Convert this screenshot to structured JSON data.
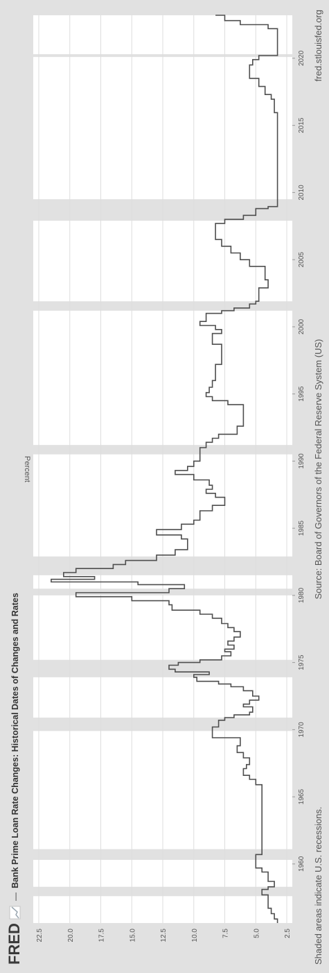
{
  "header": {
    "brand": "FRED",
    "separator": "—",
    "title": "Bank Prime Loan Rate Changes: Historical Dates of Changes and Rates"
  },
  "footer": {
    "recessions_note": "Shaded areas indicate U.S. recessions.",
    "source": "Source: Board of Governors of the Federal Reserve System (US)",
    "website": "fred.stlouisfed.org"
  },
  "colors": {
    "background": "#e1e1e1",
    "plot_background": "#ffffff",
    "recession_shade": "#e1e1e1",
    "gridline": "#dddddd",
    "series_line": "#4d4d4d",
    "text": "#444444"
  },
  "chart_data": {
    "type": "line",
    "orientation": "rotated 90 degrees clockwise (time axis runs top to bottom)",
    "title": "Bank Prime Loan Rate Changes: Historical Dates of Changes and Rates",
    "ylabel": "Percent",
    "xlabel": "",
    "ylim": [
      2.5,
      22.5
    ],
    "xlim": [
      1955.6,
      2023.2
    ],
    "y_ticks": [
      "2.5",
      "5.0",
      "7.5",
      "10.0",
      "12.5",
      "15.0",
      "17.5",
      "20.0",
      "22.5"
    ],
    "x_ticks": [
      "1960",
      "1965",
      "1970",
      "1975",
      "1980",
      "1985",
      "1990",
      "1995",
      "2000",
      "2005",
      "2010",
      "2015",
      "2020"
    ],
    "grid": true,
    "step": true,
    "recessions": [
      [
        1957.6,
        1958.3
      ],
      [
        1960.3,
        1961.1
      ],
      [
        1969.9,
        1970.9
      ],
      [
        1973.9,
        1975.2
      ],
      [
        1980.0,
        1980.5
      ],
      [
        1981.5,
        1982.9
      ],
      [
        1990.5,
        1991.2
      ],
      [
        2001.2,
        2001.9
      ],
      [
        2007.9,
        2009.5
      ],
      [
        2020.1,
        2020.3
      ]
    ],
    "series": [
      {
        "x": [
          1955.6,
          1955.9,
          1956.3,
          1956.7,
          1957.7,
          1958.1,
          1958.3,
          1958.7,
          1959.4,
          1959.7,
          1960.7,
          1965.9,
          1966.3,
          1966.6,
          1967.1,
          1967.4,
          1967.9,
          1968.3,
          1968.8,
          1969.4,
          1970.2,
          1970.7,
          1970.9,
          1971.1,
          1971.3,
          1971.7,
          1971.9,
          1972.2,
          1972.5,
          1972.9,
          1973.2,
          1973.4,
          1973.6,
          1973.9,
          1974.1,
          1974.3,
          1974.5,
          1974.8,
          1975.0,
          1975.2,
          1975.5,
          1975.8,
          1976.0,
          1976.3,
          1976.6,
          1976.9,
          1977.3,
          1977.6,
          1977.9,
          1978.3,
          1978.6,
          1978.9,
          1979.3,
          1979.6,
          1979.9,
          1980.2,
          1980.5,
          1980.8,
          1981.0,
          1981.2,
          1981.4,
          1981.7,
          1982.0,
          1982.3,
          1982.6,
          1983.0,
          1983.4,
          1984.2,
          1984.5,
          1984.9,
          1985.3,
          1985.6,
          1986.3,
          1986.7,
          1987.3,
          1987.6,
          1987.9,
          1988.2,
          1988.6,
          1989.0,
          1989.3,
          1989.6,
          1990.0,
          1991.0,
          1991.4,
          1991.7,
          1992.0,
          1992.6,
          1994.2,
          1994.5,
          1994.8,
          1995.1,
          1995.5,
          1996.0,
          1997.2,
          1998.7,
          1999.5,
          1999.8,
          2000.1,
          2000.4,
          2001.0,
          2001.2,
          2001.4,
          2001.7,
          2001.9,
          2002.9,
          2003.5,
          2004.5,
          2005.0,
          2005.5,
          2006.0,
          2006.5,
          2007.7,
          2008.0,
          2008.3,
          2008.8,
          2008.95,
          2015.95,
          2016.95,
          2017.3,
          2017.9,
          2018.5,
          2019.5,
          2019.9,
          2020.2,
          2022.2,
          2022.5,
          2022.8,
          2023.2
        ],
        "values": [
          3.25,
          3.5,
          3.75,
          4.0,
          4.5,
          4.0,
          3.5,
          4.0,
          4.5,
          5.0,
          4.5,
          5.0,
          5.5,
          6.0,
          5.75,
          5.5,
          6.0,
          6.5,
          6.25,
          8.5,
          8.0,
          7.5,
          6.75,
          5.5,
          5.25,
          6.0,
          5.5,
          4.75,
          5.25,
          6.0,
          7.0,
          8.0,
          9.75,
          10.0,
          8.75,
          11.5,
          12.0,
          11.25,
          9.5,
          7.75,
          7.0,
          7.5,
          6.75,
          7.25,
          6.75,
          6.25,
          6.75,
          7.25,
          7.75,
          8.5,
          9.5,
          11.75,
          12.0,
          15.0,
          19.5,
          12.0,
          10.75,
          14.5,
          21.5,
          18.0,
          20.5,
          19.5,
          16.5,
          15.5,
          13.0,
          11.5,
          10.5,
          11.0,
          13.0,
          11.0,
          10.0,
          9.5,
          8.5,
          7.5,
          8.25,
          9.0,
          8.5,
          8.75,
          10.0,
          11.5,
          10.5,
          10.0,
          9.5,
          9.0,
          8.5,
          8.0,
          6.5,
          6.0,
          7.25,
          8.5,
          9.0,
          8.75,
          8.5,
          8.25,
          7.75,
          8.5,
          7.75,
          8.25,
          9.5,
          9.0,
          7.75,
          6.75,
          5.5,
          5.0,
          4.75,
          4.0,
          4.25,
          5.5,
          6.25,
          7.0,
          7.75,
          8.25,
          7.5,
          6.0,
          5.0,
          4.0,
          3.25,
          3.5,
          3.75,
          4.25,
          4.75,
          5.5,
          5.25,
          4.75,
          3.25,
          4.0,
          6.25,
          7.5,
          8.25
        ]
      }
    ]
  }
}
